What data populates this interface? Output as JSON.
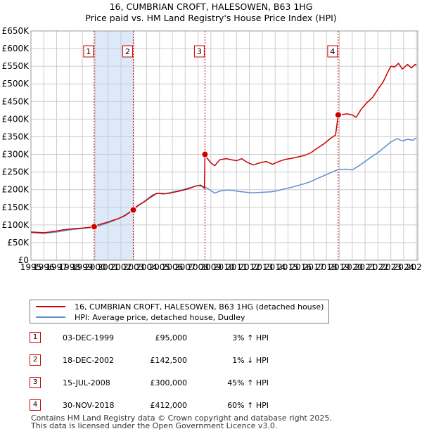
{
  "title": {
    "line1": "16, CUMBRIAN CROFT, HALESOWEN, B63 1HG",
    "line2": "Price paid vs. HM Land Registry's House Price Index (HPI)"
  },
  "colors": {
    "property": "#cc0000",
    "hpi": "#5b8fd0",
    "shade": "#dde8f8",
    "grid": "#cccccc",
    "marker_border": "#cc0000"
  },
  "legend": {
    "property_label": "16, CUMBRIAN CROFT, HALESOWEN, B63 1HG (detached house)",
    "hpi_label": "HPI: Average price, detached house, Dudley"
  },
  "sales": [
    {
      "num": "1",
      "date": "03-DEC-1999",
      "price": "£95,000",
      "hpi": "3% ↑ HPI"
    },
    {
      "num": "2",
      "date": "18-DEC-2002",
      "price": "£142,500",
      "hpi": "1% ↓ HPI"
    },
    {
      "num": "3",
      "date": "15-JUL-2008",
      "price": "£300,000",
      "hpi": "45% ↑ HPI"
    },
    {
      "num": "4",
      "date": "30-NOV-2018",
      "price": "£412,000",
      "hpi": "60% ↑ HPI"
    }
  ],
  "footer": {
    "line1": "Contains HM Land Registry data © Crown copyright and database right 2025.",
    "line2": "This data is licensed under the Open Government Licence v3.0."
  },
  "chart_data": {
    "type": "line",
    "xlim": [
      1995,
      2025.1
    ],
    "ylim": [
      0,
      650000
    ],
    "y_ticks": [
      {
        "value": 0,
        "label": "£0"
      },
      {
        "value": 50000,
        "label": "£50K"
      },
      {
        "value": 100000,
        "label": "£100K"
      },
      {
        "value": 150000,
        "label": "£150K"
      },
      {
        "value": 200000,
        "label": "£200K"
      },
      {
        "value": 250000,
        "label": "£250K"
      },
      {
        "value": 300000,
        "label": "£300K"
      },
      {
        "value": 350000,
        "label": "£350K"
      },
      {
        "value": 400000,
        "label": "£400K"
      },
      {
        "value": 450000,
        "label": "£450K"
      },
      {
        "value": 500000,
        "label": "£500K"
      },
      {
        "value": 550000,
        "label": "£550K"
      },
      {
        "value": 600000,
        "label": "£600K"
      },
      {
        "value": 650000,
        "label": "£650K"
      }
    ],
    "x_ticks": [
      "1995",
      "1996",
      "1997",
      "1998",
      "1999",
      "2000",
      "2001",
      "2002",
      "2003",
      "2004",
      "2005",
      "2006",
      "2007",
      "2008",
      "2009",
      "2010",
      "2011",
      "2012",
      "2013",
      "2014",
      "2015",
      "2016",
      "2017",
      "2018",
      "2019",
      "2020",
      "2021",
      "2022",
      "2023",
      "2024",
      "2025"
    ],
    "shaded_ranges": [
      [
        1999.92,
        2002.96
      ]
    ],
    "sale_markers": [
      {
        "num": "1",
        "x": 1999.92,
        "y": 95000
      },
      {
        "num": "2",
        "x": 2002.96,
        "y": 142500
      },
      {
        "num": "3",
        "x": 2008.54,
        "y": 300000
      },
      {
        "num": "4",
        "x": 2018.91,
        "y": 412000
      }
    ],
    "series": [
      {
        "name": "16, CUMBRIAN CROFT, HALESOWEN, B63 1HG (detached house)",
        "points": [
          [
            1995,
            80000
          ],
          [
            1995.5,
            79000
          ],
          [
            1996,
            78000
          ],
          [
            1996.5,
            80000
          ],
          [
            1997,
            83000
          ],
          [
            1997.5,
            86000
          ],
          [
            1998,
            88000
          ],
          [
            1998.5,
            90000
          ],
          [
            1999,
            91000
          ],
          [
            1999.5,
            93000
          ],
          [
            1999.92,
            95000
          ],
          [
            2000.3,
            101000
          ],
          [
            2000.8,
            106000
          ],
          [
            2001.3,
            112000
          ],
          [
            2001.8,
            118000
          ],
          [
            2002.3,
            126000
          ],
          [
            2002.7,
            136000
          ],
          [
            2002.96,
            142500
          ],
          [
            2003.3,
            155000
          ],
          [
            2003.8,
            165000
          ],
          [
            2004.3,
            178000
          ],
          [
            2004.8,
            190000
          ],
          [
            2005.3,
            188000
          ],
          [
            2005.8,
            190000
          ],
          [
            2006.3,
            194000
          ],
          [
            2006.8,
            198000
          ],
          [
            2007.3,
            203000
          ],
          [
            2007.8,
            210000
          ],
          [
            2008.2,
            213000
          ],
          [
            2008.5,
            204000
          ],
          [
            2008.54,
            300000
          ],
          [
            2008.7,
            290000
          ],
          [
            2009,
            276000
          ],
          [
            2009.3,
            268000
          ],
          [
            2009.7,
            285000
          ],
          [
            2010.2,
            288000
          ],
          [
            2010.6,
            285000
          ],
          [
            2011,
            282000
          ],
          [
            2011.4,
            288000
          ],
          [
            2011.8,
            278000
          ],
          [
            2012.3,
            270000
          ],
          [
            2012.8,
            276000
          ],
          [
            2013.3,
            280000
          ],
          [
            2013.8,
            272000
          ],
          [
            2014.3,
            280000
          ],
          [
            2014.8,
            286000
          ],
          [
            2015.3,
            289000
          ],
          [
            2015.8,
            293000
          ],
          [
            2016.3,
            297000
          ],
          [
            2016.8,
            305000
          ],
          [
            2017.3,
            318000
          ],
          [
            2017.8,
            330000
          ],
          [
            2018.3,
            345000
          ],
          [
            2018.7,
            355000
          ],
          [
            2018.91,
            412000
          ],
          [
            2019.2,
            413000
          ],
          [
            2019.6,
            415000
          ],
          [
            2020,
            412000
          ],
          [
            2020.3,
            405000
          ],
          [
            2020.7,
            428000
          ],
          [
            2021.1,
            445000
          ],
          [
            2021.6,
            462000
          ],
          [
            2022,
            485000
          ],
          [
            2022.4,
            505000
          ],
          [
            2022.7,
            528000
          ],
          [
            2023,
            550000
          ],
          [
            2023.3,
            548000
          ],
          [
            2023.6,
            558000
          ],
          [
            2023.9,
            542000
          ],
          [
            2024.3,
            555000
          ],
          [
            2024.6,
            545000
          ],
          [
            2024.9,
            555000
          ],
          [
            2025,
            553000
          ]
        ]
      },
      {
        "name": "HPI: Average price, detached house, Dudley",
        "points": [
          [
            1995,
            78000
          ],
          [
            1995.5,
            77000
          ],
          [
            1996,
            76000
          ],
          [
            1996.5,
            78000
          ],
          [
            1997,
            80000
          ],
          [
            1997.5,
            83000
          ],
          [
            1998,
            86000
          ],
          [
            1998.5,
            88000
          ],
          [
            1999,
            90000
          ],
          [
            1999.5,
            92000
          ],
          [
            1999.92,
            93000
          ],
          [
            2000.5,
            100000
          ],
          [
            2001,
            106000
          ],
          [
            2001.5,
            113000
          ],
          [
            2002,
            121000
          ],
          [
            2002.5,
            132000
          ],
          [
            2002.96,
            144000
          ],
          [
            2003.5,
            158000
          ],
          [
            2004,
            172000
          ],
          [
            2004.5,
            186000
          ],
          [
            2005,
            190000
          ],
          [
            2005.5,
            189000
          ],
          [
            2006,
            193000
          ],
          [
            2006.5,
            197000
          ],
          [
            2007,
            202000
          ],
          [
            2007.5,
            207000
          ],
          [
            2008,
            212000
          ],
          [
            2008.54,
            207000
          ],
          [
            2008.9,
            200000
          ],
          [
            2009.3,
            190000
          ],
          [
            2009.7,
            196000
          ],
          [
            2010.2,
            199000
          ],
          [
            2010.7,
            198000
          ],
          [
            2011.2,
            195000
          ],
          [
            2011.7,
            193000
          ],
          [
            2012.2,
            191000
          ],
          [
            2012.7,
            192000
          ],
          [
            2013.2,
            193000
          ],
          [
            2013.7,
            194000
          ],
          [
            2014.2,
            197000
          ],
          [
            2014.7,
            202000
          ],
          [
            2015.2,
            206000
          ],
          [
            2015.7,
            211000
          ],
          [
            2016.2,
            216000
          ],
          [
            2016.7,
            222000
          ],
          [
            2017.2,
            230000
          ],
          [
            2017.7,
            238000
          ],
          [
            2018.2,
            246000
          ],
          [
            2018.91,
            257000
          ],
          [
            2019.5,
            258000
          ],
          [
            2020,
            256000
          ],
          [
            2020.5,
            267000
          ],
          [
            2021,
            280000
          ],
          [
            2021.5,
            293000
          ],
          [
            2022,
            305000
          ],
          [
            2022.5,
            320000
          ],
          [
            2023,
            335000
          ],
          [
            2023.5,
            345000
          ],
          [
            2023.9,
            338000
          ],
          [
            2024.3,
            343000
          ],
          [
            2024.7,
            340000
          ],
          [
            2025,
            347000
          ]
        ]
      }
    ]
  }
}
